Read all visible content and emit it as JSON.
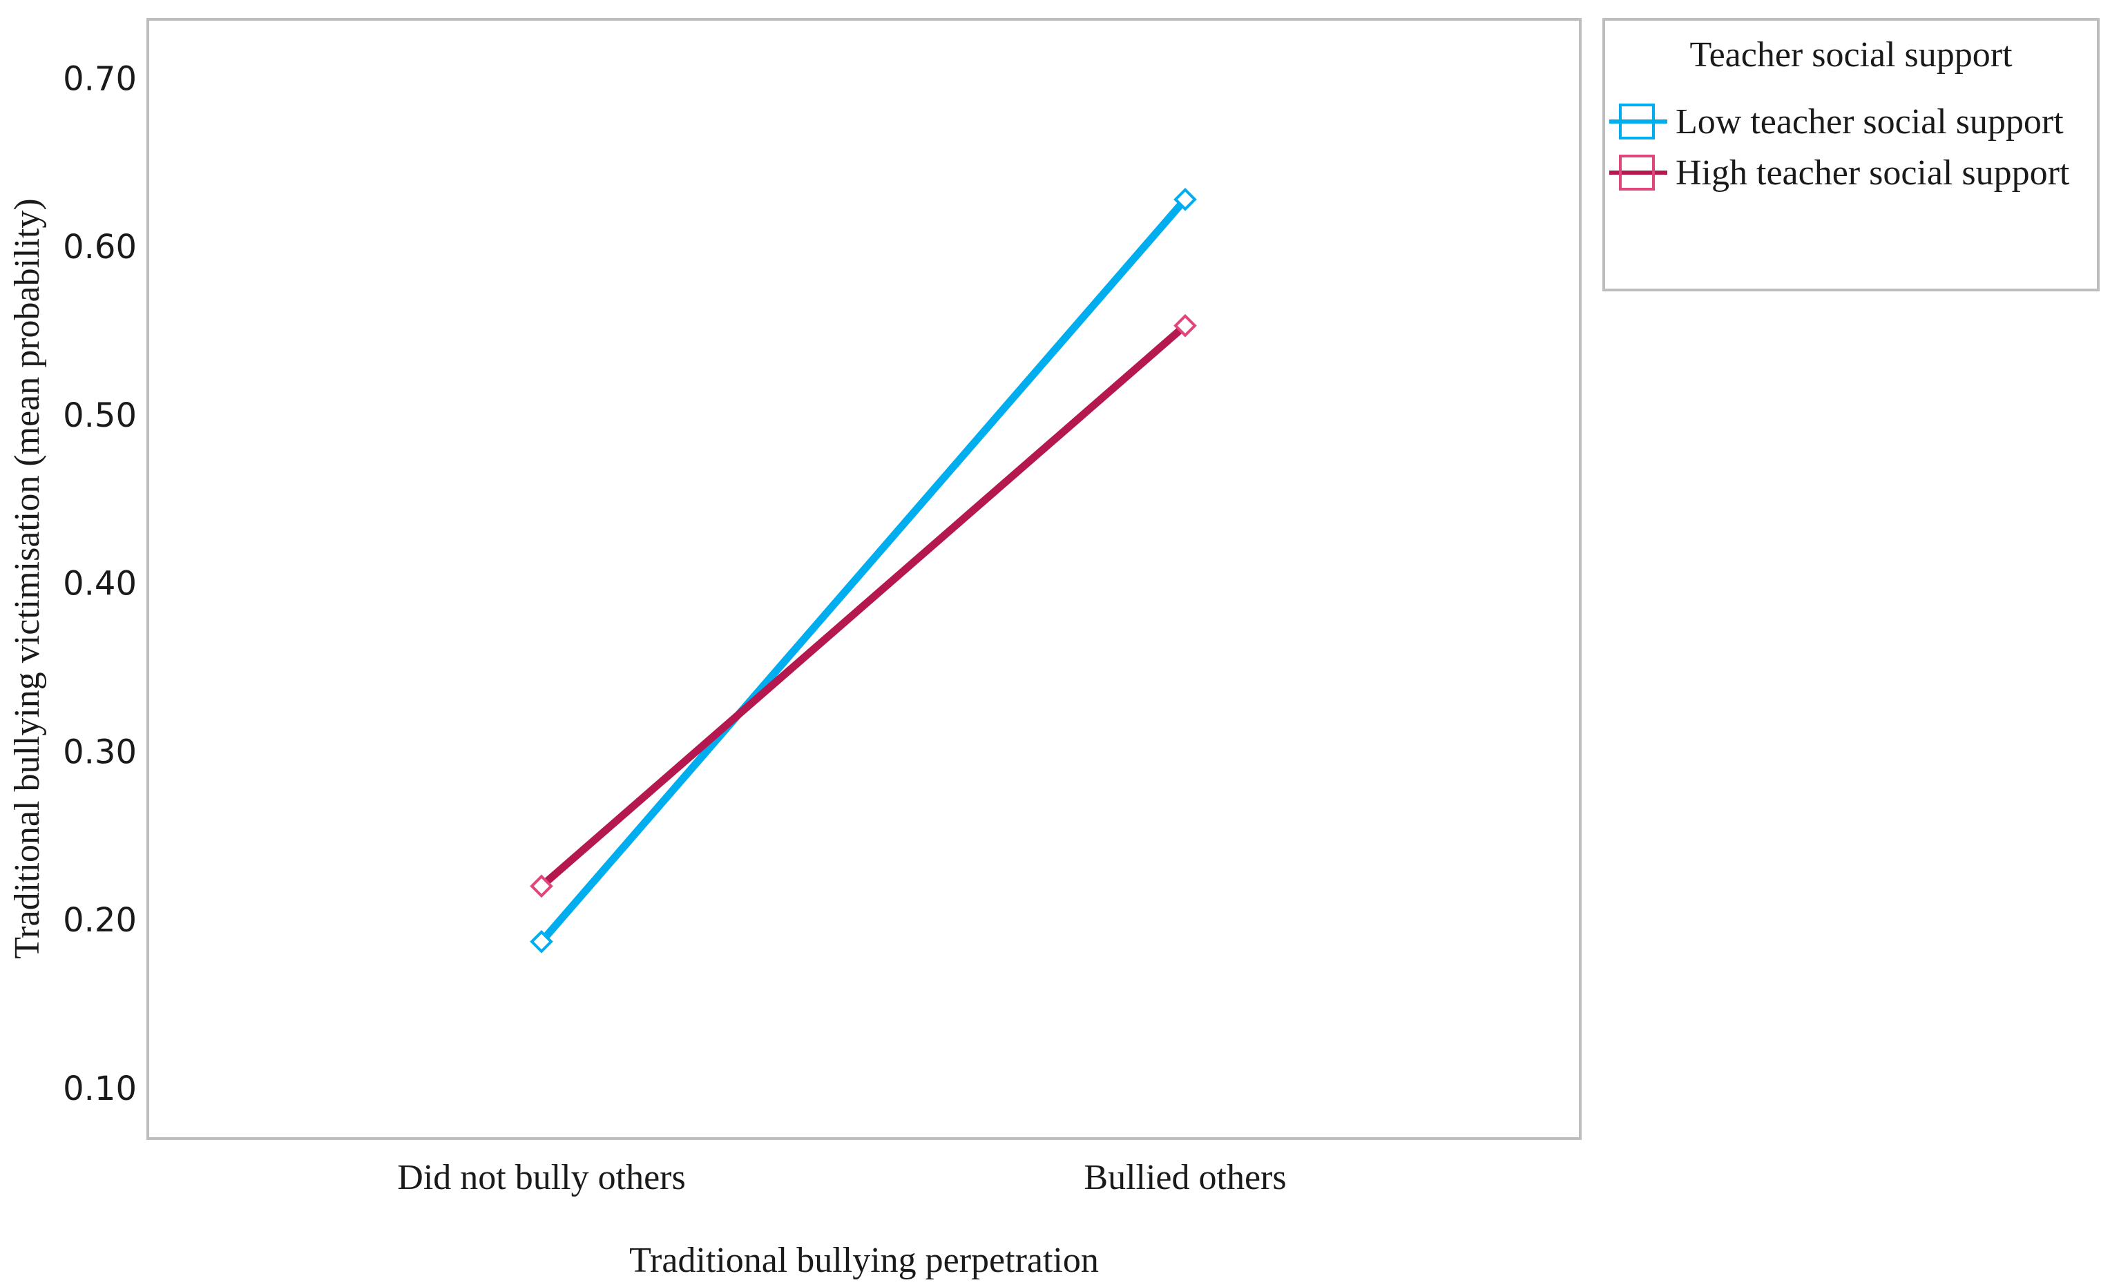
{
  "chart_data": {
    "type": "line",
    "title": "",
    "xlabel": "Traditional bullying perpetration",
    "ylabel": "Traditional bullying victimisation (mean probability)",
    "categories": [
      "Did not bully others",
      "Bullied others"
    ],
    "yticks": [
      "0.10",
      "0.20",
      "0.30",
      "0.40",
      "0.50",
      "0.60",
      "0.70"
    ],
    "ytick_values": [
      0.1,
      0.2,
      0.3,
      0.4,
      0.5,
      0.6,
      0.7
    ],
    "ylim": [
      0.07,
      0.735
    ],
    "grid": false,
    "legend": {
      "title": "Teacher social support",
      "placement": "right"
    },
    "series": [
      {
        "name": "Low teacher social support",
        "values": [
          0.187,
          0.628
        ],
        "color": "#00AEEF",
        "marker": "diamond"
      },
      {
        "name": "High teacher social support",
        "values": [
          0.22,
          0.553
        ],
        "color": "#B5184E",
        "marker_color": "#E0457B",
        "marker": "diamond"
      }
    ]
  }
}
